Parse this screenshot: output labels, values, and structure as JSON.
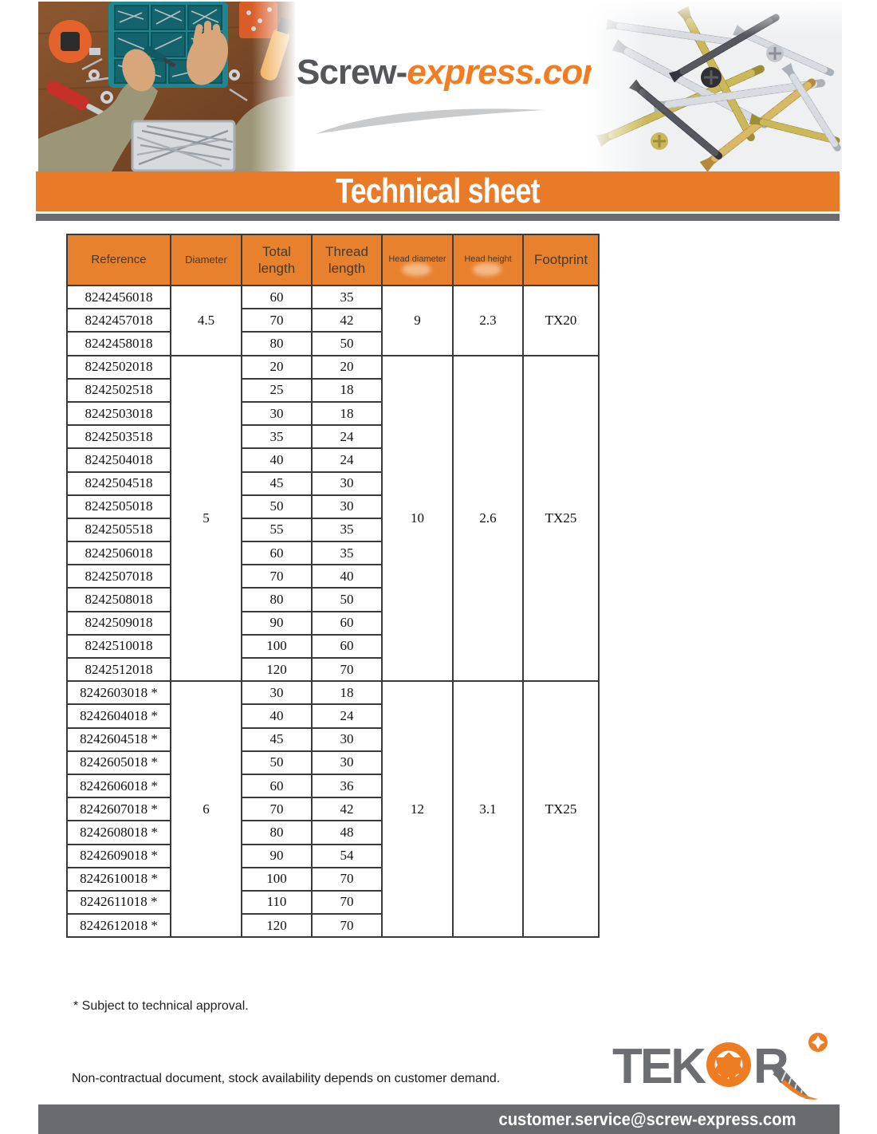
{
  "header": {
    "logo_part1": "Screw-",
    "logo_part2": "express.com",
    "banner_title": "Technical sheet"
  },
  "table": {
    "columns": [
      {
        "id": "reference",
        "label": "Reference"
      },
      {
        "id": "diameter",
        "label": "Diameter"
      },
      {
        "id": "total-length",
        "label": "Total\nlength"
      },
      {
        "id": "thread-length",
        "label": "Thread\nlength"
      },
      {
        "id": "head-diameter",
        "label": "Head diameter"
      },
      {
        "id": "head-height",
        "label": "Head height"
      },
      {
        "id": "footprint",
        "label": "Footprint"
      }
    ],
    "groups": [
      {
        "diameter": "4.5",
        "head_diameter": "9",
        "head_height": "2.3",
        "footprint": "TX20",
        "rows": [
          [
            "8242456018",
            "60",
            "35"
          ],
          [
            "8242457018",
            "70",
            "42"
          ],
          [
            "8242458018",
            "80",
            "50"
          ]
        ]
      },
      {
        "diameter": "5",
        "head_diameter": "10",
        "head_height": "2.6",
        "footprint": "TX25",
        "rows": [
          [
            "8242502018",
            "20",
            "20"
          ],
          [
            "8242502518",
            "25",
            "18"
          ],
          [
            "8242503018",
            "30",
            "18"
          ],
          [
            "8242503518",
            "35",
            "24"
          ],
          [
            "8242504018",
            "40",
            "24"
          ],
          [
            "8242504518",
            "45",
            "30"
          ],
          [
            "8242505018",
            "50",
            "30"
          ],
          [
            "8242505518",
            "55",
            "35"
          ],
          [
            "8242506018",
            "60",
            "35"
          ],
          [
            "8242507018",
            "70",
            "40"
          ],
          [
            "8242508018",
            "80",
            "50"
          ],
          [
            "8242509018",
            "90",
            "60"
          ],
          [
            "8242510018",
            "100",
            "60"
          ],
          [
            "8242512018",
            "120",
            "70"
          ]
        ]
      },
      {
        "diameter": "6",
        "head_diameter": "12",
        "head_height": "3.1",
        "footprint": "TX25",
        "rows": [
          [
            "8242603018 *",
            "30",
            "18"
          ],
          [
            "8242604018 *",
            "40",
            "24"
          ],
          [
            "8242604518 *",
            "45",
            "30"
          ],
          [
            "8242605018 *",
            "50",
            "30"
          ],
          [
            "8242606018 *",
            "60",
            "36"
          ],
          [
            "8242607018 *",
            "70",
            "42"
          ],
          [
            "8242608018 *",
            "80",
            "48"
          ],
          [
            "8242609018 *",
            "90",
            "54"
          ],
          [
            "8242610018 *",
            "100",
            "70"
          ],
          [
            "8242611018 *",
            "110",
            "70"
          ],
          [
            "8242612018 *",
            "120",
            "70"
          ]
        ]
      }
    ]
  },
  "footnote": "* Subject to technical approval.",
  "bottom": {
    "disclaimer": "Non-contractual document, stock availability depends on customer demand.",
    "brand_left": "TEK",
    "brand_right": "R"
  },
  "footer": {
    "email": "customer.service@screw-express.com"
  },
  "colors": {
    "orange": "#E8812E",
    "banner_orange": "#E87A28",
    "bar_gray": "#6A6B6E",
    "logo_gray": "#55565A",
    "logo_orange": "#F47B20",
    "brand_gray": "#6D6E71"
  }
}
